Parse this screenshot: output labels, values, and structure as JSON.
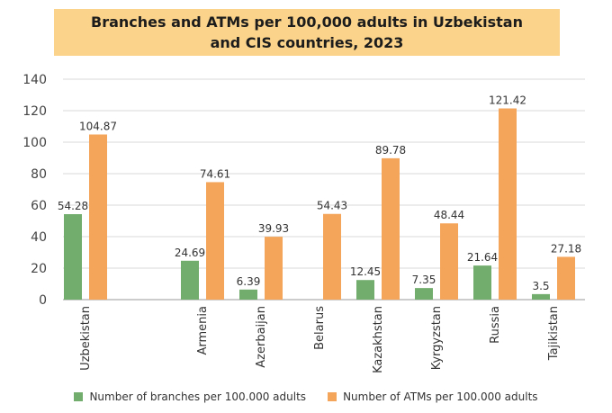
{
  "chart_data": {
    "type": "bar",
    "title_lines": [
      "Branches and ATMs per 100,000 adults in Uzbekistan",
      "and CIS countries, 2023"
    ],
    "categories": [
      "Uzbekistan",
      "Armenia",
      "Azerbaijan",
      "Belarus",
      "Kazakhstan",
      "Kyrgyzstan",
      "Russia",
      "Tajikistan"
    ],
    "series": [
      {
        "name": "Number of branches per 100.000 adults",
        "color": "#72ad6d",
        "values": [
          54.28,
          24.69,
          6.39,
          null,
          12.45,
          7.35,
          21.64,
          3.5
        ],
        "labels": [
          "54.28",
          "24.69",
          "6.39",
          "",
          "12.45",
          "7.35",
          "21.64",
          "3.5"
        ]
      },
      {
        "name": "Number of ATMs per 100.000 adults",
        "color": "#f5a55a",
        "values": [
          104.87,
          74.61,
          39.93,
          54.43,
          89.78,
          48.44,
          121.42,
          27.18
        ],
        "labels": [
          "104.87",
          "74.61",
          "39.93",
          "54.43",
          "89.78",
          "48.44",
          "121.42",
          "27.18"
        ]
      }
    ],
    "yticks": [
      "0",
      "20",
      "40",
      "60",
      "80",
      "100",
      "120",
      "140"
    ],
    "ylim": [
      0,
      140
    ],
    "grid": true,
    "legend_position": "bottom",
    "title_background": "#fbd38a"
  }
}
